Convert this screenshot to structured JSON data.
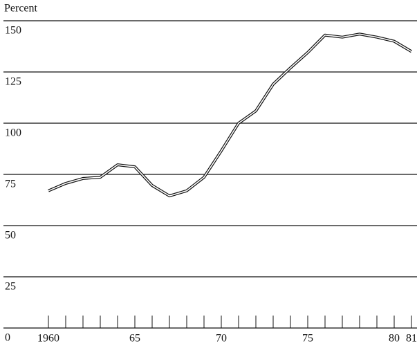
{
  "chart_data": {
    "type": "line",
    "y_label": "Percent",
    "x": [
      1960,
      1961,
      1962,
      1963,
      1964,
      1965,
      1966,
      1967,
      1968,
      1969,
      1970,
      1971,
      1972,
      1973,
      1974,
      1975,
      1976,
      1977,
      1978,
      1979,
      1980,
      1981
    ],
    "series": [
      {
        "color": "#111111",
        "values": [
          67,
          70.6,
          73,
          73.6,
          79.7,
          78.7,
          69.6,
          64.5,
          67,
          73.6,
          86.5,
          100,
          106,
          119,
          127,
          134.5,
          143,
          142,
          143.5,
          142,
          140,
          135
        ]
      }
    ],
    "xlim": [
      1960,
      1981
    ],
    "xticks": [
      {
        "value": 1960,
        "label": "1960"
      },
      {
        "value": 1965,
        "label": "65"
      },
      {
        "value": 1970,
        "label": "70"
      },
      {
        "value": 1975,
        "label": "75"
      },
      {
        "value": 1980,
        "label": "80"
      },
      {
        "value": 1981,
        "label": "81"
      }
    ],
    "ylim": [
      0,
      150
    ],
    "yticks": [
      0,
      25,
      50,
      75,
      100,
      125,
      150
    ],
    "grid": true
  }
}
